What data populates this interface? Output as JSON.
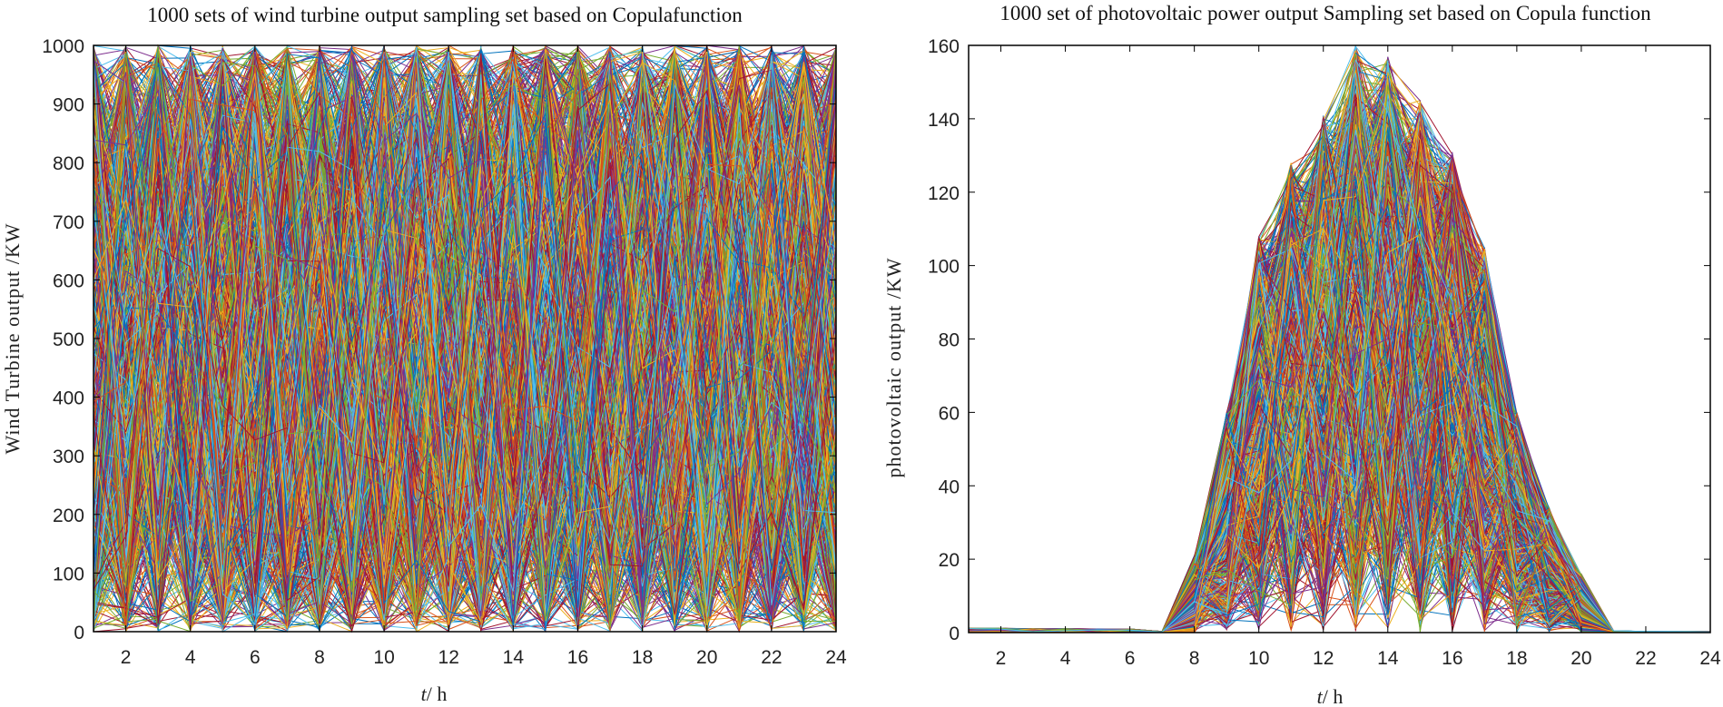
{
  "colors": [
    "#0072BD",
    "#D95319",
    "#EDB120",
    "#7E2F8E",
    "#77AC30",
    "#4DBEEE",
    "#A2142F"
  ],
  "chart_data": [
    {
      "type": "line",
      "title": "1000 sets of wind turbine output sampling set based on Copulafunction",
      "xlabel": "t/ h",
      "ylabel": "Wind Turbine output  /KW",
      "xlim": [
        1,
        24
      ],
      "ylim": [
        0,
        1000
      ],
      "xticks": [
        2,
        4,
        6,
        8,
        10,
        12,
        14,
        16,
        18,
        20,
        22,
        24
      ],
      "yticks": [
        0,
        100,
        200,
        300,
        400,
        500,
        600,
        700,
        800,
        900,
        1000
      ],
      "n_series": 1000,
      "x": [
        1,
        2,
        3,
        4,
        5,
        6,
        7,
        8,
        9,
        10,
        11,
        12,
        13,
        14,
        15,
        16,
        17,
        18,
        19,
        20,
        21,
        22,
        23,
        24
      ],
      "envelope_min": [
        0,
        0,
        0,
        0,
        0,
        0,
        0,
        0,
        0,
        0,
        0,
        0,
        0,
        0,
        0,
        0,
        0,
        0,
        0,
        0,
        0,
        0,
        0,
        0
      ],
      "envelope_max": [
        1000,
        1000,
        1000,
        1000,
        1000,
        1000,
        1000,
        1000,
        1000,
        1000,
        1000,
        1000,
        1000,
        1000,
        1000,
        1000,
        1000,
        1000,
        1000,
        1000,
        1000,
        1000,
        1000,
        1000
      ],
      "grid": false,
      "legend": "none"
    },
    {
      "type": "line",
      "title": "1000 set of photovoltaic power  output Sampling set based on Copula function",
      "xlabel": "t/ h",
      "ylabel": "photovoltaic  output  /KW",
      "xlim": [
        1,
        24
      ],
      "ylim": [
        0,
        160
      ],
      "xticks": [
        2,
        4,
        6,
        8,
        10,
        12,
        14,
        16,
        18,
        20,
        22,
        24
      ],
      "yticks": [
        0,
        20,
        40,
        60,
        80,
        100,
        120,
        140,
        160
      ],
      "n_series": 1000,
      "x": [
        1,
        2,
        3,
        4,
        5,
        6,
        7,
        8,
        9,
        10,
        11,
        12,
        13,
        14,
        15,
        16,
        17,
        18,
        19,
        20,
        21,
        22,
        23,
        24
      ],
      "envelope_min": [
        0,
        0,
        0,
        0,
        0,
        0,
        0,
        0,
        0,
        0,
        0,
        0,
        0,
        0,
        0,
        0,
        0,
        0,
        0,
        0,
        0,
        0,
        0,
        0
      ],
      "envelope_max": [
        1.2,
        1.2,
        1.1,
        1.1,
        1.0,
        1.0,
        0.3,
        21,
        60,
        108,
        128,
        141,
        160,
        157,
        145,
        131,
        105,
        60,
        34,
        16,
        0.5,
        0.3,
        0.3,
        0.3
      ],
      "grid": false,
      "legend": "none"
    }
  ]
}
